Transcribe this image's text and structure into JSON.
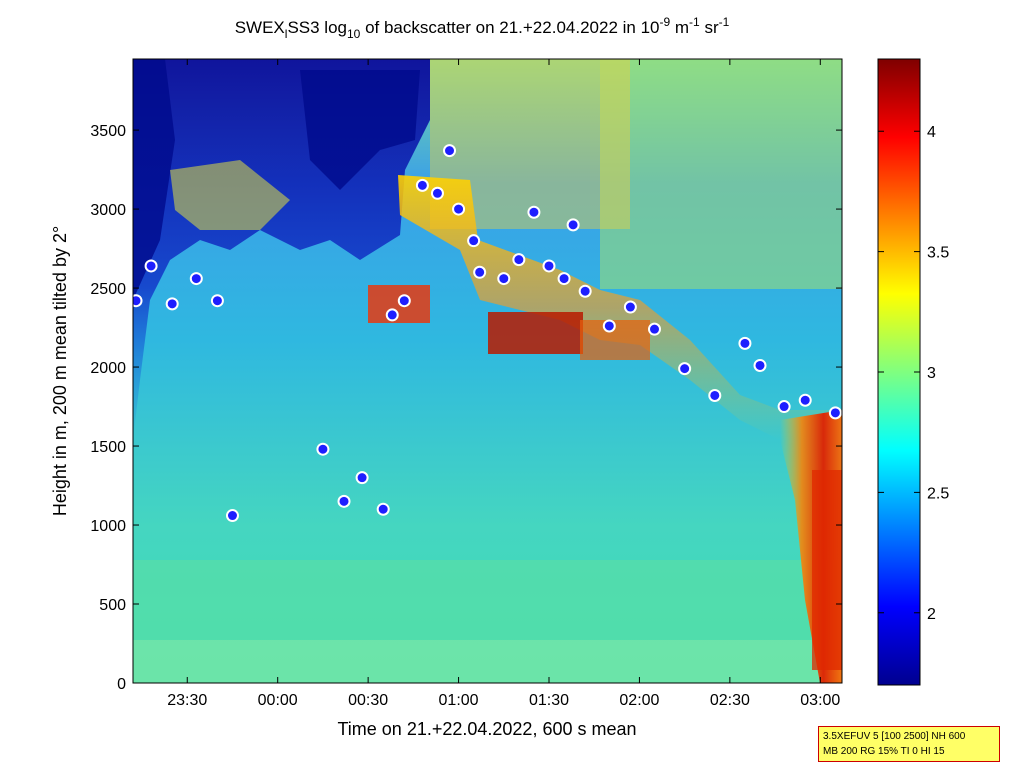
{
  "title_parts": {
    "a": "SWEX",
    "a_sub": "l",
    "b": "SS3 log",
    "b_sub": "10",
    "c": " of backscatter on 21.+22.04.2022 in 10",
    "c_sup": "-9",
    "d": " m",
    "d_sup": "-1",
    "e": " sr",
    "e_sup": "-1"
  },
  "info_box": {
    "line1": "3.5XEFUV 5 [100 2500] NH 600",
    "line2": "MB 200 RG 15% TI 0 HI 15"
  },
  "colors": {
    "low": "#00008f",
    "mid": "#2ad4d4",
    "high": "#7f0000",
    "layer_marker_edge": "#ffffff",
    "layer_marker_fill": "#1e1eff"
  },
  "chart_data": {
    "type": "heatmap",
    "xlabel": "Time on 21.+22.04.2022, 600 s mean",
    "ylabel": "Height in m, 200 m mean tilted by 2°",
    "x_ticks": [
      "23:30",
      "00:00",
      "00:30",
      "01:00",
      "01:30",
      "02:00",
      "02:30",
      "03:00"
    ],
    "y_ticks": [
      "0",
      "500",
      "1000",
      "1500",
      "2000",
      "2500",
      "3000",
      "3500"
    ],
    "colorbar_ticks": [
      "2",
      "2.5",
      "3",
      "3.5",
      "4"
    ],
    "colorbar_range": [
      1.7,
      4.3
    ],
    "xlim_hours_after_midnight": [
      -0.8,
      3.12
    ],
    "ylim": [
      0,
      3950
    ],
    "colormap": "jet",
    "grid": false,
    "features": {
      "dense_low_backscatter_region": "upper left, 23:05-00:55, 2000-3950 m",
      "boundary_layer_top": "descending from ~3150 m at 00:50 to ~1750 m at 03:05",
      "high_backscatter_plume": "near 03:00, 0-1800 m"
    },
    "layer_top_markers": [
      {
        "time": "23:13",
        "height": 2420
      },
      {
        "time": "23:18",
        "height": 2640
      },
      {
        "time": "23:25",
        "height": 2400
      },
      {
        "time": "23:33",
        "height": 2560
      },
      {
        "time": "23:40",
        "height": 2420
      },
      {
        "time": "23:45",
        "height": 1060
      },
      {
        "time": "00:15",
        "height": 1480
      },
      {
        "time": "00:22",
        "height": 1150
      },
      {
        "time": "00:28",
        "height": 1300
      },
      {
        "time": "00:35",
        "height": 1100
      },
      {
        "time": "00:38",
        "height": 2330
      },
      {
        "time": "00:42",
        "height": 2420
      },
      {
        "time": "00:48",
        "height": 3150
      },
      {
        "time": "00:53",
        "height": 3100
      },
      {
        "time": "00:57",
        "height": 3370
      },
      {
        "time": "01:00",
        "height": 3000
      },
      {
        "time": "01:05",
        "height": 2800
      },
      {
        "time": "01:07",
        "height": 2600
      },
      {
        "time": "01:15",
        "height": 2560
      },
      {
        "time": "01:20",
        "height": 2680
      },
      {
        "time": "01:25",
        "height": 2980
      },
      {
        "time": "01:30",
        "height": 2640
      },
      {
        "time": "01:35",
        "height": 2560
      },
      {
        "time": "01:38",
        "height": 2900
      },
      {
        "time": "01:42",
        "height": 2480
      },
      {
        "time": "01:50",
        "height": 2260
      },
      {
        "time": "01:57",
        "height": 2380
      },
      {
        "time": "02:05",
        "height": 2240
      },
      {
        "time": "02:15",
        "height": 1990
      },
      {
        "time": "02:25",
        "height": 1820
      },
      {
        "time": "02:35",
        "height": 2150
      },
      {
        "time": "02:40",
        "height": 2010
      },
      {
        "time": "02:48",
        "height": 1750
      },
      {
        "time": "02:55",
        "height": 1790
      },
      {
        "time": "03:05",
        "height": 1710
      }
    ]
  }
}
